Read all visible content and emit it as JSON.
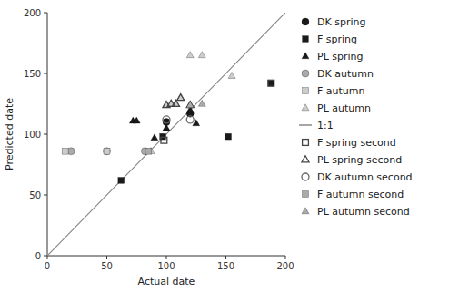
{
  "chart_data": {
    "type": "scatter",
    "xlabel": "Actual date",
    "ylabel": "Predicted date",
    "xlim": [
      0,
      200
    ],
    "ylim": [
      0,
      200
    ],
    "xticks": [
      0,
      50,
      100,
      150,
      200
    ],
    "yticks": [
      0,
      50,
      100,
      150,
      200
    ],
    "grid": false,
    "legend": "right",
    "series": [
      {
        "name": "DK spring",
        "x": [
          100,
          120
        ],
        "values": [
          110,
          117
        ],
        "color": "#1a1a1a",
        "marker": "circle"
      },
      {
        "name": "F spring",
        "x": [
          62,
          97,
          152,
          188
        ],
        "values": [
          62,
          98,
          98,
          142
        ],
        "color": "#1a1a1a",
        "marker": "square"
      },
      {
        "name": "PL spring",
        "x": [
          72,
          75,
          90,
          100,
          120,
          125
        ],
        "values": [
          111,
          111,
          97,
          105,
          120,
          109
        ],
        "color": "#1a1a1a",
        "marker": "triangle"
      },
      {
        "name": "DK autumn",
        "x": [
          20,
          50,
          82
        ],
        "values": [
          86,
          86,
          86
        ],
        "color": "#aaaaaa",
        "marker": "circle"
      },
      {
        "name": "F autumn",
        "x": [
          15,
          50
        ],
        "values": [
          86,
          86
        ],
        "color": "#cccccc",
        "marker": "square"
      },
      {
        "name": "PL autumn",
        "x": [
          87,
          100,
          104,
          108,
          112,
          120,
          130,
          155
        ],
        "values": [
          86,
          124,
          125,
          125,
          130,
          165,
          165,
          148
        ],
        "color": "#cccccc",
        "marker": "triangle"
      },
      {
        "name": "1:1",
        "type": "line",
        "x": [
          0,
          200
        ],
        "values": [
          0,
          200
        ],
        "color": "#888888"
      },
      {
        "name": "F spring second",
        "x": [
          98,
          188
        ],
        "values": [
          95,
          142
        ],
        "color": "#444444",
        "marker": "square-open"
      },
      {
        "name": "PL spring second",
        "x": [
          100,
          104,
          108,
          112,
          120
        ],
        "values": [
          124,
          125,
          125,
          130,
          124
        ],
        "color": "#444444",
        "marker": "triangle-open"
      },
      {
        "name": "DK autumn second",
        "x": [
          100,
          120
        ],
        "values": [
          112,
          112
        ],
        "color": "#666666",
        "marker": "circle-open"
      },
      {
        "name": "F autumn second",
        "x": [
          85
        ],
        "values": [
          86
        ],
        "color": "#aaaaaa",
        "marker": "square"
      },
      {
        "name": "PL autumn second",
        "x": [
          120,
          130
        ],
        "values": [
          124,
          125
        ],
        "color": "#aaaaaa",
        "marker": "triangle"
      }
    ]
  }
}
